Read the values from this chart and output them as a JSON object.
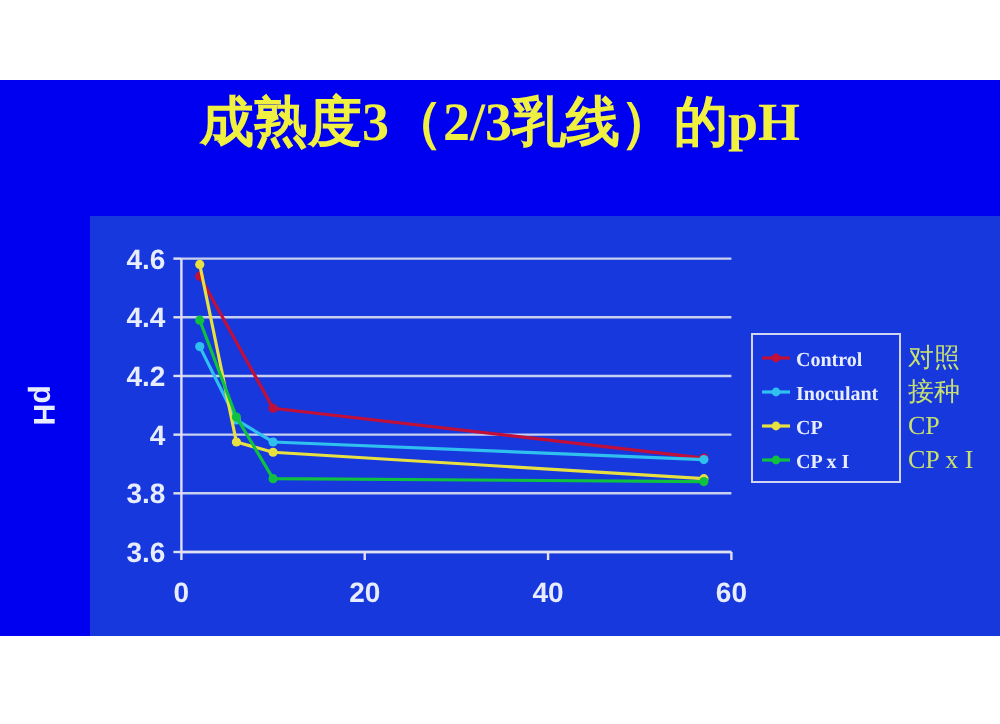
{
  "chart_data": {
    "type": "line",
    "title": "成熟度3（2/3乳线）的pH",
    "ylabel": "pH",
    "xlim": [
      0,
      60
    ],
    "xticks": [
      0,
      20,
      40,
      60
    ],
    "ylim": [
      3.6,
      4.6
    ],
    "yticks": [
      {
        "value": 3.6,
        "label": "3.6"
      },
      {
        "value": 3.8,
        "label": "3.8"
      },
      {
        "value": 4,
        "label": "4"
      },
      {
        "value": 4.2,
        "label": "4.2"
      },
      {
        "value": 4.4,
        "label": "4.4"
      },
      {
        "value": 4.6,
        "label": "4.6"
      }
    ],
    "grid": "y",
    "legend": "right",
    "marker": "circle",
    "series": [
      {
        "name": "Control",
        "color": "#c0103a",
        "x": [
          2,
          10,
          57
        ],
        "values": [
          4.54,
          4.09,
          3.92
        ]
      },
      {
        "name": "Inoculant",
        "color": "#30c0f0",
        "x": [
          2,
          6,
          10,
          57
        ],
        "values": [
          4.3,
          4.05,
          3.975,
          3.915
        ]
      },
      {
        "name": "CP",
        "color": "#e8e040",
        "x": [
          2,
          6,
          10,
          57
        ],
        "values": [
          4.58,
          3.975,
          3.94,
          3.85
        ]
      },
      {
        "name": "CP x I",
        "color": "#10c040",
        "x": [
          2,
          6,
          10,
          57
        ],
        "values": [
          4.39,
          4.06,
          3.85,
          3.84
        ]
      }
    ],
    "annotations": [
      "对照",
      "接种",
      "CP",
      "CP x I"
    ]
  }
}
